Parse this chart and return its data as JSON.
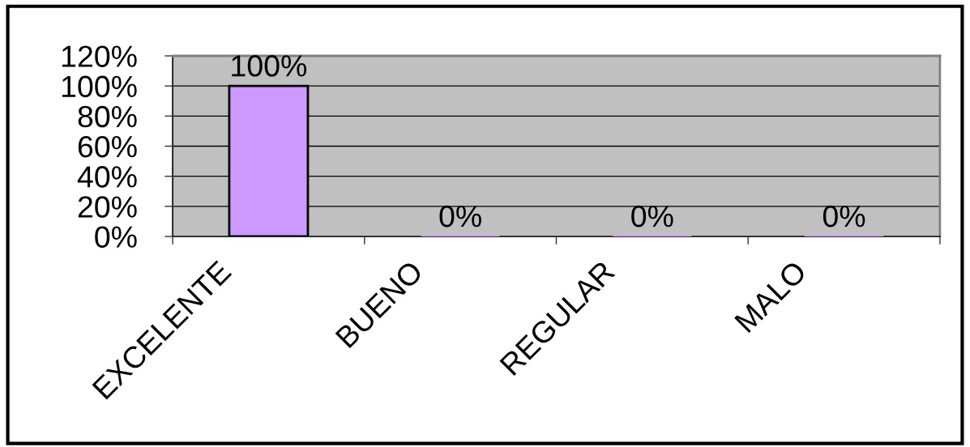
{
  "chart_data": {
    "type": "bar",
    "categories": [
      "EXCELENTE",
      "BUENO",
      "REGULAR",
      "MALO"
    ],
    "values": [
      100,
      0,
      0,
      0
    ],
    "color": "#cc99ff",
    "value_labels": [
      "100%",
      "0%",
      "0%",
      "0%"
    ],
    "ylim": [
      0,
      120
    ],
    "yticks": [
      {
        "value": 0,
        "label": "0%"
      },
      {
        "value": 20,
        "label": "20%"
      },
      {
        "value": 40,
        "label": "40%"
      },
      {
        "value": 60,
        "label": "60%"
      },
      {
        "value": 80,
        "label": "80%"
      },
      {
        "value": 100,
        "label": "100%"
      },
      {
        "value": 120,
        "label": "120%"
      }
    ],
    "grid": "y"
  }
}
